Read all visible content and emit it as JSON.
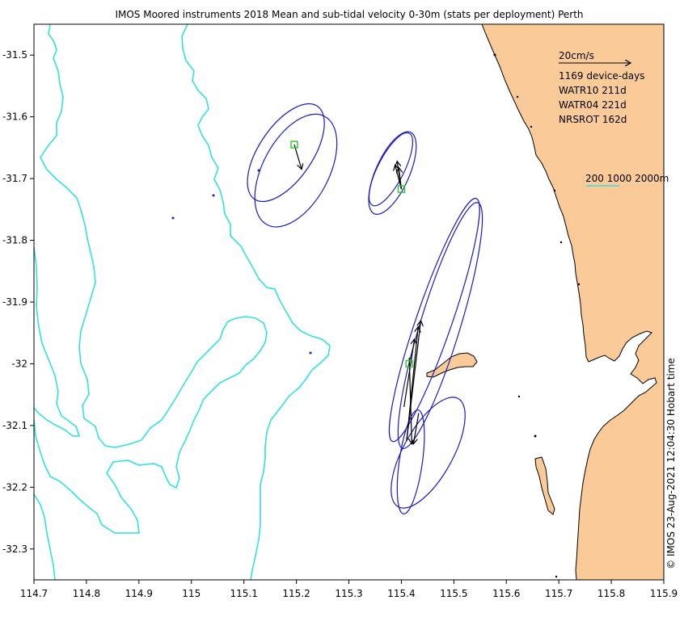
{
  "title": "IMOS Moored instruments 2018 Mean and sub-tidal velocity 0-30m (stats per deployment) Perth",
  "credit": "© IMOS 23-Aug-2021 12:04:30 Hobart time",
  "legend": {
    "scale_label": "20cm/s",
    "device_days": "1169 device-days",
    "deployments": [
      "WATR10 211d",
      "WATR04 221d",
      "NRSROT 162d"
    ],
    "isobaths_label": "200 1000 2000m"
  },
  "colors": {
    "land": "#FACB99",
    "isobath": "#2FE1E1",
    "ellipse": "#1A1AC8",
    "mooring_marker": "#22CC22",
    "arrow": "#000000",
    "sea": "#FFFFFF"
  },
  "chart_data": {
    "type": "map",
    "xlim": [
      114.7,
      115.9
    ],
    "ylim": [
      -32.35,
      -31.45
    ],
    "x_ticks": [
      "114.7",
      "114.8",
      "114.9",
      "115",
      "115.1",
      "115.2",
      "115.3",
      "115.4",
      "115.5",
      "115.6",
      "115.7",
      "115.8",
      "115.9"
    ],
    "y_ticks": [
      "-31.5",
      "-31.6",
      "-31.7",
      "-31.8",
      "-31.9",
      "-32",
      "-32.1",
      "-32.2",
      "-32.3"
    ],
    "moorings": [
      {
        "name": "WATR10",
        "lon": 115.196,
        "lat": -31.645
      },
      {
        "name": "WATR04",
        "lon": 115.4,
        "lat": -31.717
      },
      {
        "name": "NRSROT",
        "lon": 115.415,
        "lat": -32.0
      }
    ],
    "variance_ellipses": [
      {
        "lon": 115.18,
        "lat": -31.658,
        "semi_major_deg": 0.107,
        "semi_minor_deg": 0.051,
        "orient_deg": -56
      },
      {
        "lon": 115.199,
        "lat": -31.687,
        "semi_major_deg": 0.117,
        "semi_minor_deg": 0.063,
        "orient_deg": -62
      },
      {
        "lon": 115.38,
        "lat": -31.685,
        "semi_major_deg": 0.077,
        "semi_minor_deg": 0.025,
        "orient_deg": -63
      },
      {
        "lon": 115.383,
        "lat": -31.691,
        "semi_major_deg": 0.085,
        "semi_minor_deg": 0.032,
        "orient_deg": -66
      },
      {
        "lon": 115.463,
        "lat": -31.929,
        "semi_major_deg": 0.245,
        "semi_minor_deg": 0.034,
        "orient_deg": -71
      },
      {
        "lon": 115.474,
        "lat": -31.938,
        "semi_major_deg": 0.245,
        "semi_minor_deg": 0.038,
        "orient_deg": -73
      },
      {
        "lon": 115.451,
        "lat": -32.144,
        "semi_major_deg": 0.118,
        "semi_minor_deg": 0.047,
        "orient_deg": -61
      },
      {
        "lon": 115.418,
        "lat": -32.159,
        "semi_major_deg": 0.1,
        "semi_minor_deg": 0.022,
        "orient_deg": -82
      }
    ],
    "mean_velocity_arrows": [
      {
        "lon0": 115.196,
        "lat0": -31.645,
        "lon1": 115.21,
        "lat1": -31.685
      },
      {
        "lon0": 115.4,
        "lat0": -31.717,
        "lon1": 115.392,
        "lat1": -31.672
      },
      {
        "lon0": 115.4,
        "lat0": -31.717,
        "lon1": 115.388,
        "lat1": -31.678
      },
      {
        "lon0": 115.4,
        "lat0": -31.717,
        "lon1": 115.395,
        "lat1": -31.682
      },
      {
        "lon0": 115.41,
        "lat0": -32.125,
        "lon1": 115.437,
        "lat1": -31.93
      },
      {
        "lon0": 115.41,
        "lat0": -32.125,
        "lon1": 115.432,
        "lat1": -31.94
      },
      {
        "lon0": 115.405,
        "lat0": -32.07,
        "lon1": 115.425,
        "lat1": -31.96
      },
      {
        "lon0": 115.415,
        "lat0": -31.99,
        "lon1": 115.42,
        "lat1": -32.13
      },
      {
        "lon0": 115.433,
        "lat0": -32.08,
        "lon1": 115.423,
        "lat1": -32.13
      }
    ],
    "scale_arrow": {
      "label": "20cm/s"
    },
    "grid": false
  }
}
